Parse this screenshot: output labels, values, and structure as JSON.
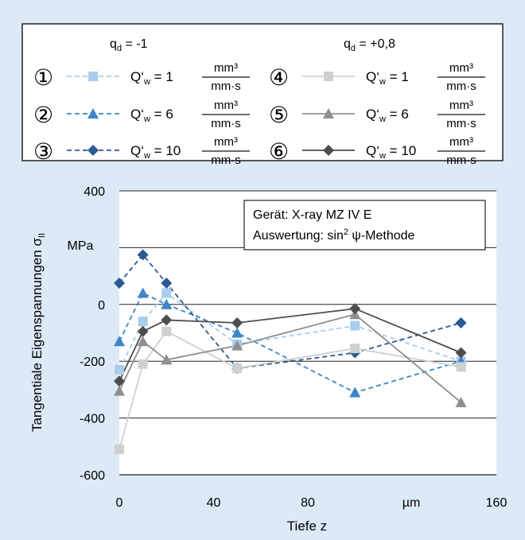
{
  "legend": {
    "group_left": {
      "q": "q",
      "sub": "d",
      "value": " = -1"
    },
    "group_right": {
      "q": "q",
      "sub": "d",
      "value": " = +0,8"
    },
    "entries": [
      {
        "num": "①",
        "q_label": "Q‘",
        "q_sub": "w",
        "q_value": " = 1",
        "unit_num": "mm³",
        "unit_den": "mm·s"
      },
      {
        "num": "②",
        "q_label": "Q‘",
        "q_sub": "w",
        "q_value": " = 6",
        "unit_num": "mm³",
        "unit_den": "mm·s"
      },
      {
        "num": "③",
        "q_label": "Q‘",
        "q_sub": "w",
        "q_value": " = 10",
        "unit_num": "mm³",
        "unit_den": "mm·s"
      },
      {
        "num": "④",
        "q_label": "Q‘",
        "q_sub": "w",
        "q_value": " = 1",
        "unit_num": "mm³",
        "unit_den": "mm·s"
      },
      {
        "num": "⑤",
        "q_label": "Q‘",
        "q_sub": "w",
        "q_value": " = 6",
        "unit_num": "mm³",
        "unit_den": "mm·s"
      },
      {
        "num": "⑥",
        "q_label": "Q‘",
        "q_sub": "w",
        "q_value": " = 10",
        "unit_num": "mm³",
        "unit_den": "mm·s"
      }
    ]
  },
  "annotation": {
    "line1": "Gerät: X-ray MZ IV E",
    "line2_prefix": "Auswertung: sin",
    "line2_sup": "2",
    "line2_suffix": " ψ-Methode"
  },
  "chart_data": {
    "type": "line",
    "xlabel": "Tiefe z",
    "ylabel": "Tangentiale Eigenspannungen σ",
    "ylabel_sub": "II",
    "y_unit": "MPa",
    "x_unit": "µm",
    "xlim": [
      0,
      160
    ],
    "ylim": [
      -600,
      400
    ],
    "x_ticks": [
      0,
      40,
      80,
      160
    ],
    "y_ticks": [
      400,
      0,
      -200,
      -400,
      -600
    ],
    "grid": true,
    "series": [
      {
        "id": 1,
        "color": "#a9cdec",
        "dash": true,
        "marker": "square",
        "points": [
          [
            0,
            -230
          ],
          [
            10,
            -60
          ],
          [
            20,
            40
          ],
          [
            50,
            -140
          ],
          [
            100,
            -75
          ],
          [
            145,
            -200
          ]
        ]
      },
      {
        "id": 2,
        "color": "#3d85c6",
        "dash": true,
        "marker": "triangle",
        "points": [
          [
            0,
            -130
          ],
          [
            10,
            40
          ],
          [
            20,
            0
          ],
          [
            50,
            -100
          ],
          [
            100,
            -310
          ],
          [
            145,
            -200
          ]
        ]
      },
      {
        "id": 3,
        "color": "#2a5a92",
        "dash": true,
        "marker": "diamond",
        "points": [
          [
            0,
            75
          ],
          [
            10,
            175
          ],
          [
            20,
            75
          ],
          [
            50,
            -225
          ],
          [
            100,
            -170
          ],
          [
            145,
            -65
          ]
        ]
      },
      {
        "id": 4,
        "color": "#cfcfcf",
        "dash": false,
        "marker": "square",
        "points": [
          [
            0,
            -510
          ],
          [
            10,
            -210
          ],
          [
            20,
            -95
          ],
          [
            50,
            -225
          ],
          [
            100,
            -155
          ],
          [
            145,
            -220
          ]
        ]
      },
      {
        "id": 5,
        "color": "#8f8f8f",
        "dash": false,
        "marker": "triangle",
        "points": [
          [
            0,
            -305
          ],
          [
            10,
            -130
          ],
          [
            20,
            -195
          ],
          [
            50,
            -145
          ],
          [
            100,
            -35
          ],
          [
            145,
            -345
          ]
        ]
      },
      {
        "id": 6,
        "color": "#4d4d4d",
        "dash": false,
        "marker": "diamond",
        "points": [
          [
            0,
            -270
          ],
          [
            10,
            -95
          ],
          [
            20,
            -55
          ],
          [
            50,
            -65
          ],
          [
            100,
            -15
          ],
          [
            145,
            -170
          ]
        ]
      }
    ]
  }
}
